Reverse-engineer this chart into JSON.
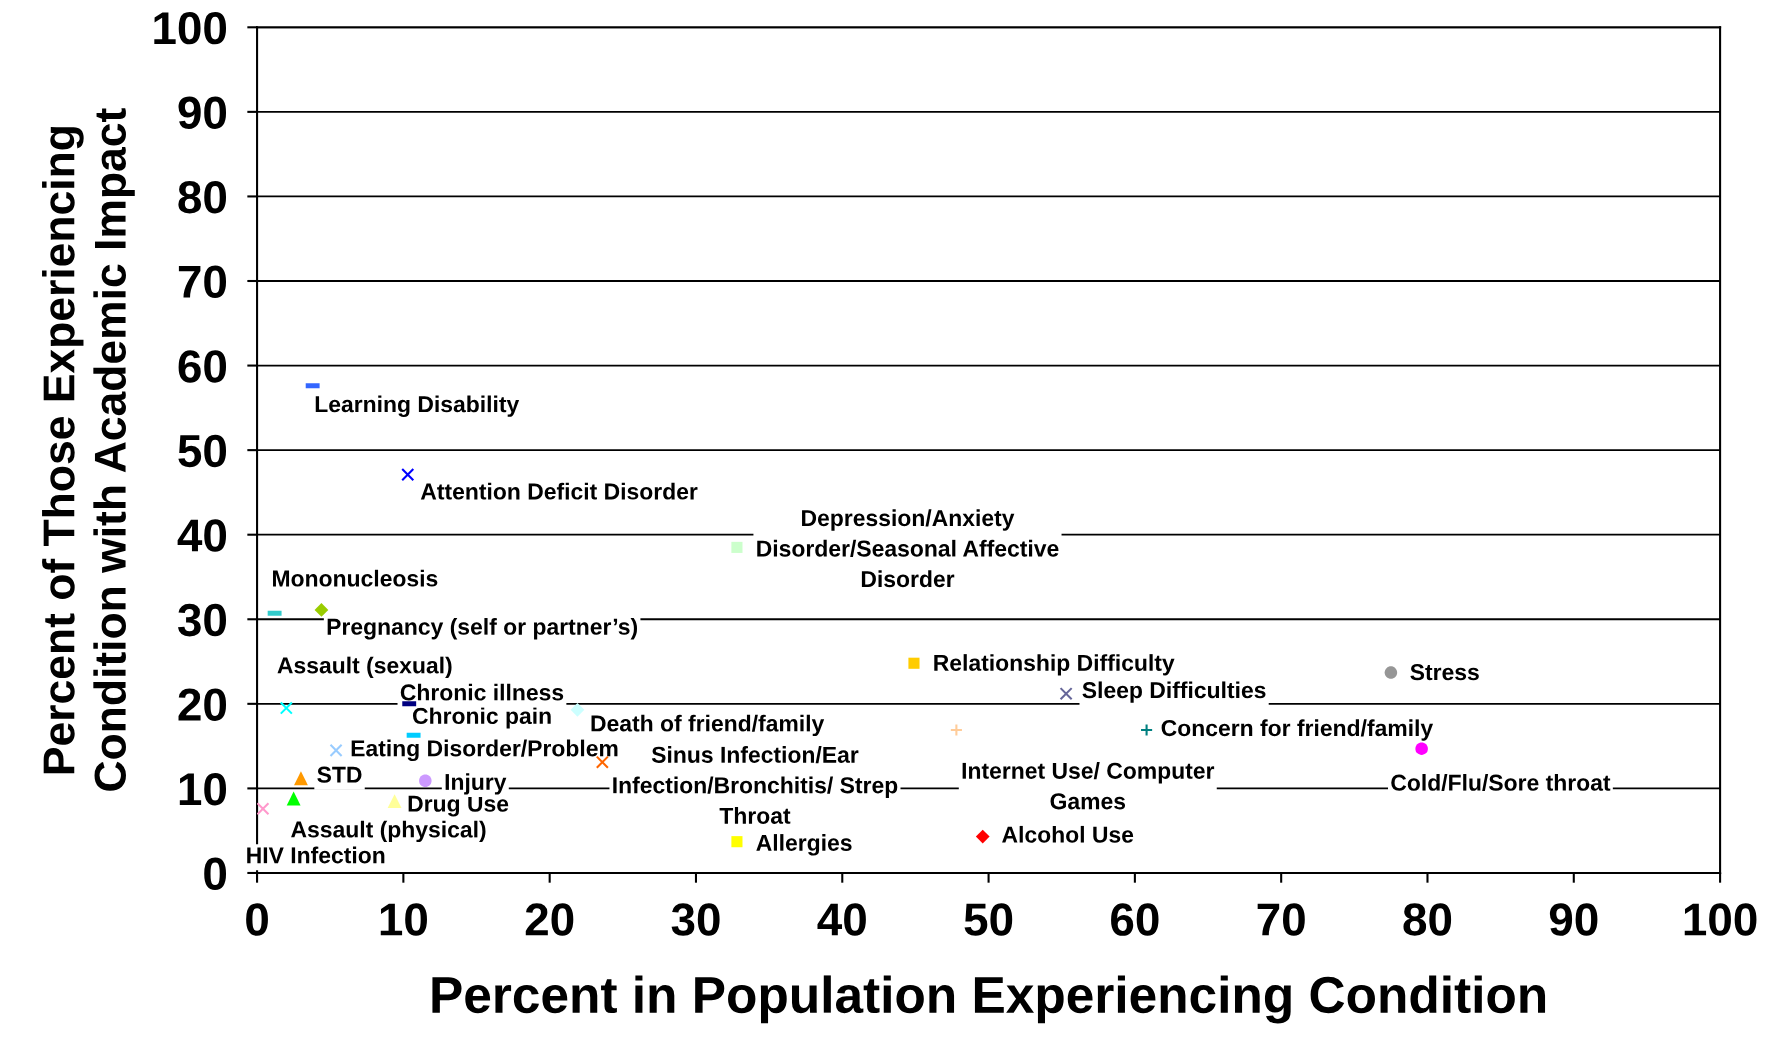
{
  "chart_data": {
    "type": "scatter",
    "xlabel": "Percent in Population Experiencing Condition",
    "ylabel": "Percent of Those Experiencing\nCondition with Academic Impact",
    "xlim": [
      0,
      100
    ],
    "ylim": [
      0,
      100
    ],
    "xticks": [
      0,
      10,
      20,
      30,
      40,
      50,
      60,
      70,
      80,
      90,
      100
    ],
    "yticks": [
      0,
      10,
      20,
      30,
      40,
      50,
      60,
      70,
      80,
      90,
      100
    ],
    "grid": "y",
    "series": [
      {
        "name": "Learning Disability",
        "color": "#3366ff",
        "x": [
          3.8
        ],
        "values": [
          57.6
        ]
      },
      {
        "name": "Attention Deficit Disorder",
        "color": "#0000ff",
        "marker": "cross",
        "x": [
          10.3
        ],
        "values": [
          47.1
        ]
      },
      {
        "name": "Depression/Anxiety\nDisorder/Seasonal Affective\nDisorder",
        "color": "#ccffcc",
        "marker": "square",
        "x": [
          32.8
        ],
        "values": [
          38.5
        ]
      },
      {
        "name": "Mononucleosis",
        "color": "#33cccc",
        "x": [
          1.2
        ],
        "values": [
          30.7
        ]
      },
      {
        "name": "Pregnancy (self or partner’s)",
        "color": "#99cc00",
        "marker": "diamond",
        "x": [
          4.4
        ],
        "values": [
          31.1
        ]
      },
      {
        "name": "Relationship Difficulty",
        "color": "#ffcc00",
        "marker": "square",
        "x": [
          44.9
        ],
        "values": [
          24.8
        ]
      },
      {
        "name": "Stress",
        "color": "#969696",
        "marker": "circle",
        "x": [
          77.5
        ],
        "values": [
          23.7
        ]
      },
      {
        "name": "Sleep Difficulties",
        "color": "#666699",
        "marker": "cross",
        "x": [
          55.3
        ],
        "values": [
          21.2
        ]
      },
      {
        "name": "Assault (sexual)",
        "color": "#00ffff",
        "marker": "cross",
        "x": [
          2.0
        ],
        "values": [
          19.5
        ]
      },
      {
        "name": "Chronic illness",
        "color": "#000080",
        "x": [
          10.4
        ],
        "values": [
          20.0
        ]
      },
      {
        "name": "Death of friend/family",
        "color": "#ccffff",
        "marker": "diamond",
        "x": [
          21.9
        ],
        "values": [
          19.3
        ]
      },
      {
        "name": "Chronic pain",
        "color": "#00ccff",
        "x": [
          10.7
        ],
        "values": [
          16.3
        ]
      },
      {
        "name": "Concern for friend/family",
        "color": "#008080",
        "marker": "plus",
        "x": [
          60.8
        ],
        "values": [
          16.9
        ]
      },
      {
        "name": "Internet Use/ Computer\nGames",
        "color": "#ffcc99",
        "marker": "plus",
        "x": [
          47.8
        ],
        "values": [
          16.9
        ]
      },
      {
        "name": "Cold/Flu/Sore throat",
        "color": "#ff00ff",
        "marker": "circle",
        "x": [
          79.6
        ],
        "values": [
          14.7
        ]
      },
      {
        "name": "Eating Disorder/Problem",
        "color": "#99ccff",
        "marker": "cross",
        "x": [
          5.4
        ],
        "values": [
          14.5
        ]
      },
      {
        "name": "Sinus Infection/Ear\nInfection/Bronchitis/ Strep\nThroat",
        "color": "#ff6600",
        "marker": "cross",
        "x": [
          23.6
        ],
        "values": [
          13.1
        ]
      },
      {
        "name": "STD",
        "color": "#ff9900",
        "marker": "triangle",
        "x": [
          3.0
        ],
        "values": [
          11.2
        ]
      },
      {
        "name": "Injury",
        "color": "#cc99ff",
        "marker": "circle",
        "x": [
          11.5
        ],
        "values": [
          10.9
        ]
      },
      {
        "name": "Assault (physical)",
        "color": "#00ff00",
        "marker": "triangle",
        "x": [
          2.5
        ],
        "values": [
          8.8
        ]
      },
      {
        "name": "Drug Use",
        "color": "#ffff99",
        "marker": "triangle",
        "x": [
          9.4
        ],
        "values": [
          8.5
        ]
      },
      {
        "name": "HIV Infection",
        "color": "#ff99cc",
        "marker": "cross",
        "x": [
          0.4
        ],
        "values": [
          7.6
        ]
      },
      {
        "name": "Allergies",
        "color": "#ffff00",
        "marker": "square",
        "x": [
          32.8
        ],
        "values": [
          3.7
        ]
      },
      {
        "name": "Alcohol Use",
        "color": "#ff0000",
        "marker": "diamond",
        "x": [
          49.6
        ],
        "values": [
          4.3
        ]
      }
    ]
  }
}
